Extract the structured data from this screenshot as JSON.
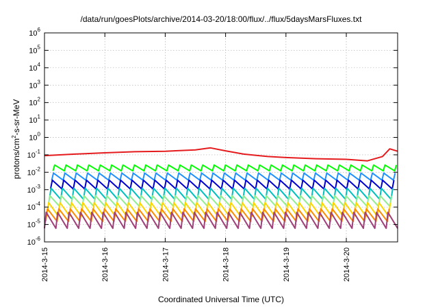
{
  "chart_data": {
    "type": "line",
    "title": "/data/run/goesPlots/archive/2014-03-20/18:00/flux/../flux/5daysMarsFluxes.txt",
    "xlabel": "Coordinated Universal Time (UTC)",
    "ylabel": {
      "pre": "protons/cm",
      "sup": "2",
      "post": "-s-sr-MeV"
    },
    "y_scale": "log",
    "ylim_exp": [
      -6,
      6
    ],
    "y_ticks": [
      {
        "base": "10",
        "exp": "6"
      },
      {
        "base": "10",
        "exp": "5"
      },
      {
        "base": "10",
        "exp": "4"
      },
      {
        "base": "10",
        "exp": "3"
      },
      {
        "base": "10",
        "exp": "2"
      },
      {
        "base": "10",
        "exp": "1"
      },
      {
        "base": "10",
        "exp": "0"
      },
      {
        "base": "10",
        "exp": "-1"
      },
      {
        "base": "10",
        "exp": "-2"
      },
      {
        "base": "10",
        "exp": "-3"
      },
      {
        "base": "10",
        "exp": "-4"
      },
      {
        "base": "10",
        "exp": "-5"
      },
      {
        "base": "10",
        "exp": "-6"
      }
    ],
    "x_range_days": [
      0,
      5.85
    ],
    "x_ticks": [
      {
        "label": "2014-3-15",
        "day": 0
      },
      {
        "label": "2014-3-16",
        "day": 1
      },
      {
        "label": "2014-3-17",
        "day": 2
      },
      {
        "label": "2014-3-18",
        "day": 3
      },
      {
        "label": "2014-3-19",
        "day": 4
      },
      {
        "label": "2014-3-20",
        "day": 5
      }
    ],
    "grid": true,
    "legend": "none",
    "series": [
      {
        "color": "#e41a1c",
        "style": "slow",
        "points": [
          [
            0,
            0.09
          ],
          [
            0.5,
            0.11
          ],
          [
            1,
            0.13
          ],
          [
            1.5,
            0.15
          ],
          [
            2,
            0.16
          ],
          [
            2.5,
            0.19
          ],
          [
            2.75,
            0.25
          ],
          [
            3,
            0.17
          ],
          [
            3.3,
            0.11
          ],
          [
            3.7,
            0.08
          ],
          [
            4,
            0.07
          ],
          [
            4.5,
            0.06
          ],
          [
            5,
            0.055
          ],
          [
            5.35,
            0.045
          ],
          [
            5.6,
            0.08
          ],
          [
            5.72,
            0.22
          ],
          [
            5.85,
            0.16
          ]
        ]
      },
      {
        "color": "#00ff00",
        "style": "saw",
        "top": 0.026,
        "bottom": 0.012
      },
      {
        "color": "#1e90ff",
        "style": "saw",
        "top": 0.009,
        "bottom": 0.0035
      },
      {
        "color": "#0000cd",
        "style": "saw",
        "top": 0.0035,
        "bottom": 0.0011
      },
      {
        "color": "#00c0c0",
        "style": "saw",
        "top": 0.0012,
        "bottom": 0.00028
      },
      {
        "color": "#90ee90",
        "style": "saw",
        "top": 0.00045,
        "bottom": 0.00011
      },
      {
        "color": "#ffd700",
        "style": "saw",
        "top": 0.00018,
        "bottom": 3e-05
      },
      {
        "color": "#ff8c00",
        "style": "saw",
        "top": 8e-05,
        "bottom": 1.5e-05
      },
      {
        "color": "#a0407a",
        "style": "saw",
        "top": 5e-05,
        "bottom": 6e-06
      }
    ],
    "saw_cycles_per_day": 5.3
  }
}
